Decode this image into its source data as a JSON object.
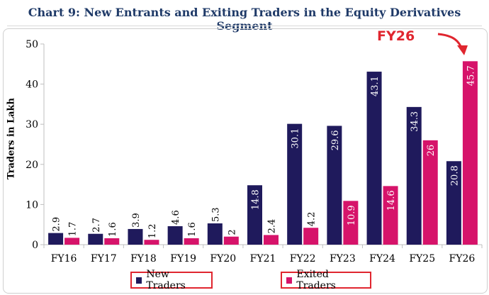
{
  "chart_data": {
    "type": "bar",
    "title": "Chart 9: New Entrants and Exiting Traders in the Equity Derivatives Segment",
    "ylabel": "Traders in Lakh",
    "xlabel": "",
    "ylim": [
      0,
      50
    ],
    "yticks": [
      "0",
      "10",
      "20",
      "30",
      "40",
      "50"
    ],
    "categories": [
      "FY16",
      "FY17",
      "FY18",
      "FY19",
      "FY20",
      "FY21",
      "FY22",
      "FY23",
      "FY24",
      "FY25",
      "FY26"
    ],
    "series": [
      {
        "name": "New Traders",
        "color": "#1f1a5c",
        "values": [
          2.9,
          2.7,
          3.9,
          4.6,
          5.3,
          14.8,
          30.1,
          29.6,
          43.1,
          34.3,
          20.8
        ]
      },
      {
        "name": "Exited Traders",
        "color": "#d6136a",
        "values": [
          1.7,
          1.6,
          1.2,
          1.6,
          2,
          2.4,
          4.2,
          10.9,
          14.6,
          26,
          45.7
        ]
      }
    ],
    "grid": false,
    "legend_position": "bottom",
    "annotation": "FY26"
  },
  "legend": {
    "new_label": "New Traders",
    "exited_label": "Exited Traders"
  }
}
